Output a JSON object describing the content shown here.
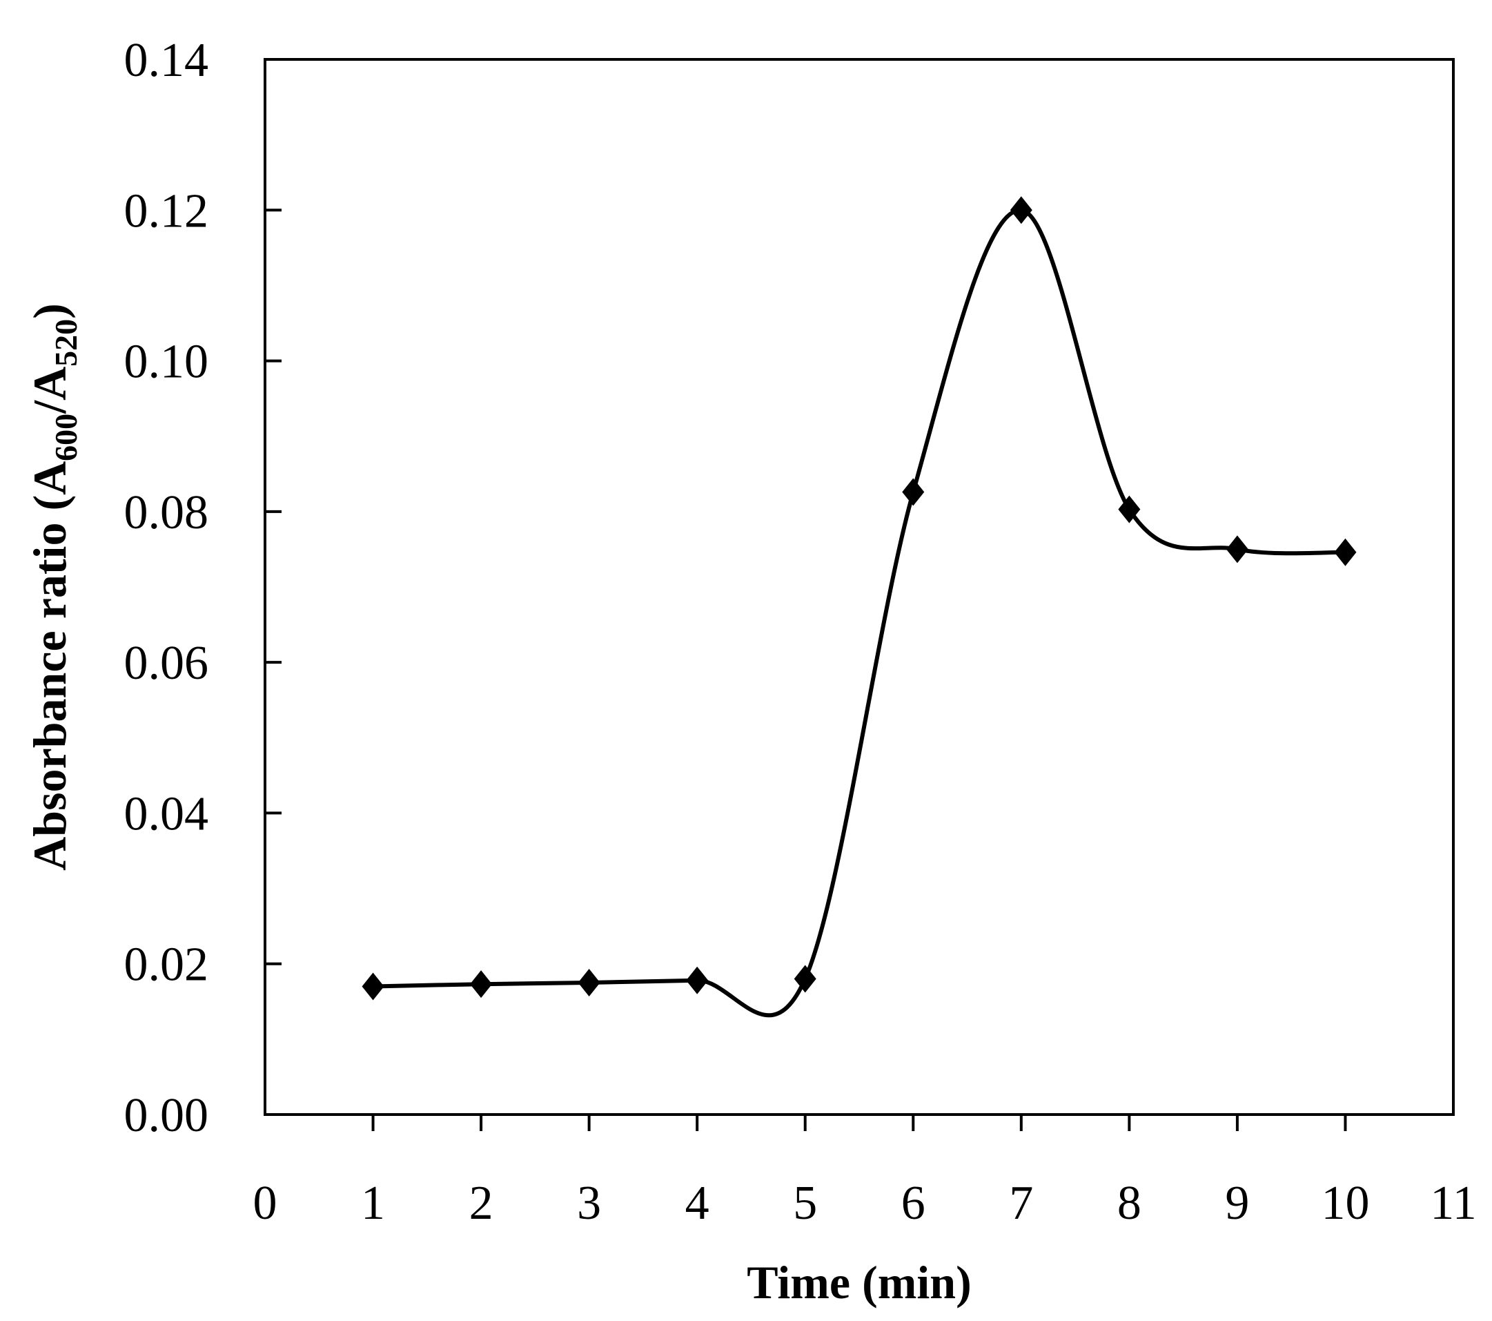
{
  "chart_data": {
    "type": "line",
    "title": "",
    "xlabel": "Time (min)",
    "ylabel": {
      "prefix": "Absorbance ratio (A",
      "sub1": "600",
      "mid": "/A",
      "sub2": "520",
      "suffix": ")"
    },
    "xlim": [
      0,
      11
    ],
    "ylim": [
      0,
      0.14
    ],
    "xticks": [
      0,
      1,
      2,
      3,
      4,
      5,
      6,
      7,
      8,
      9,
      10,
      11
    ],
    "xtick_labels": [
      "0",
      "1",
      "2",
      "3",
      "4",
      "5",
      "6",
      "7",
      "8",
      "9",
      "10",
      "11"
    ],
    "yticks": [
      0,
      0.02,
      0.04,
      0.06,
      0.08,
      0.1,
      0.12,
      0.14
    ],
    "ytick_labels": [
      "0.00",
      "0.02",
      "0.04",
      "0.06",
      "0.08",
      "0.10",
      "0.12",
      "0.14"
    ],
    "grid": false,
    "smooth": true,
    "marker": "diamond",
    "series": [
      {
        "x": [
          1,
          2,
          3,
          4,
          5,
          6,
          7,
          8,
          9,
          10
        ],
        "y": [
          0.017,
          0.0173,
          0.0175,
          0.0178,
          0.018,
          0.0826,
          0.12,
          0.0803,
          0.075,
          0.0746
        ],
        "color": "#000000"
      }
    ]
  }
}
